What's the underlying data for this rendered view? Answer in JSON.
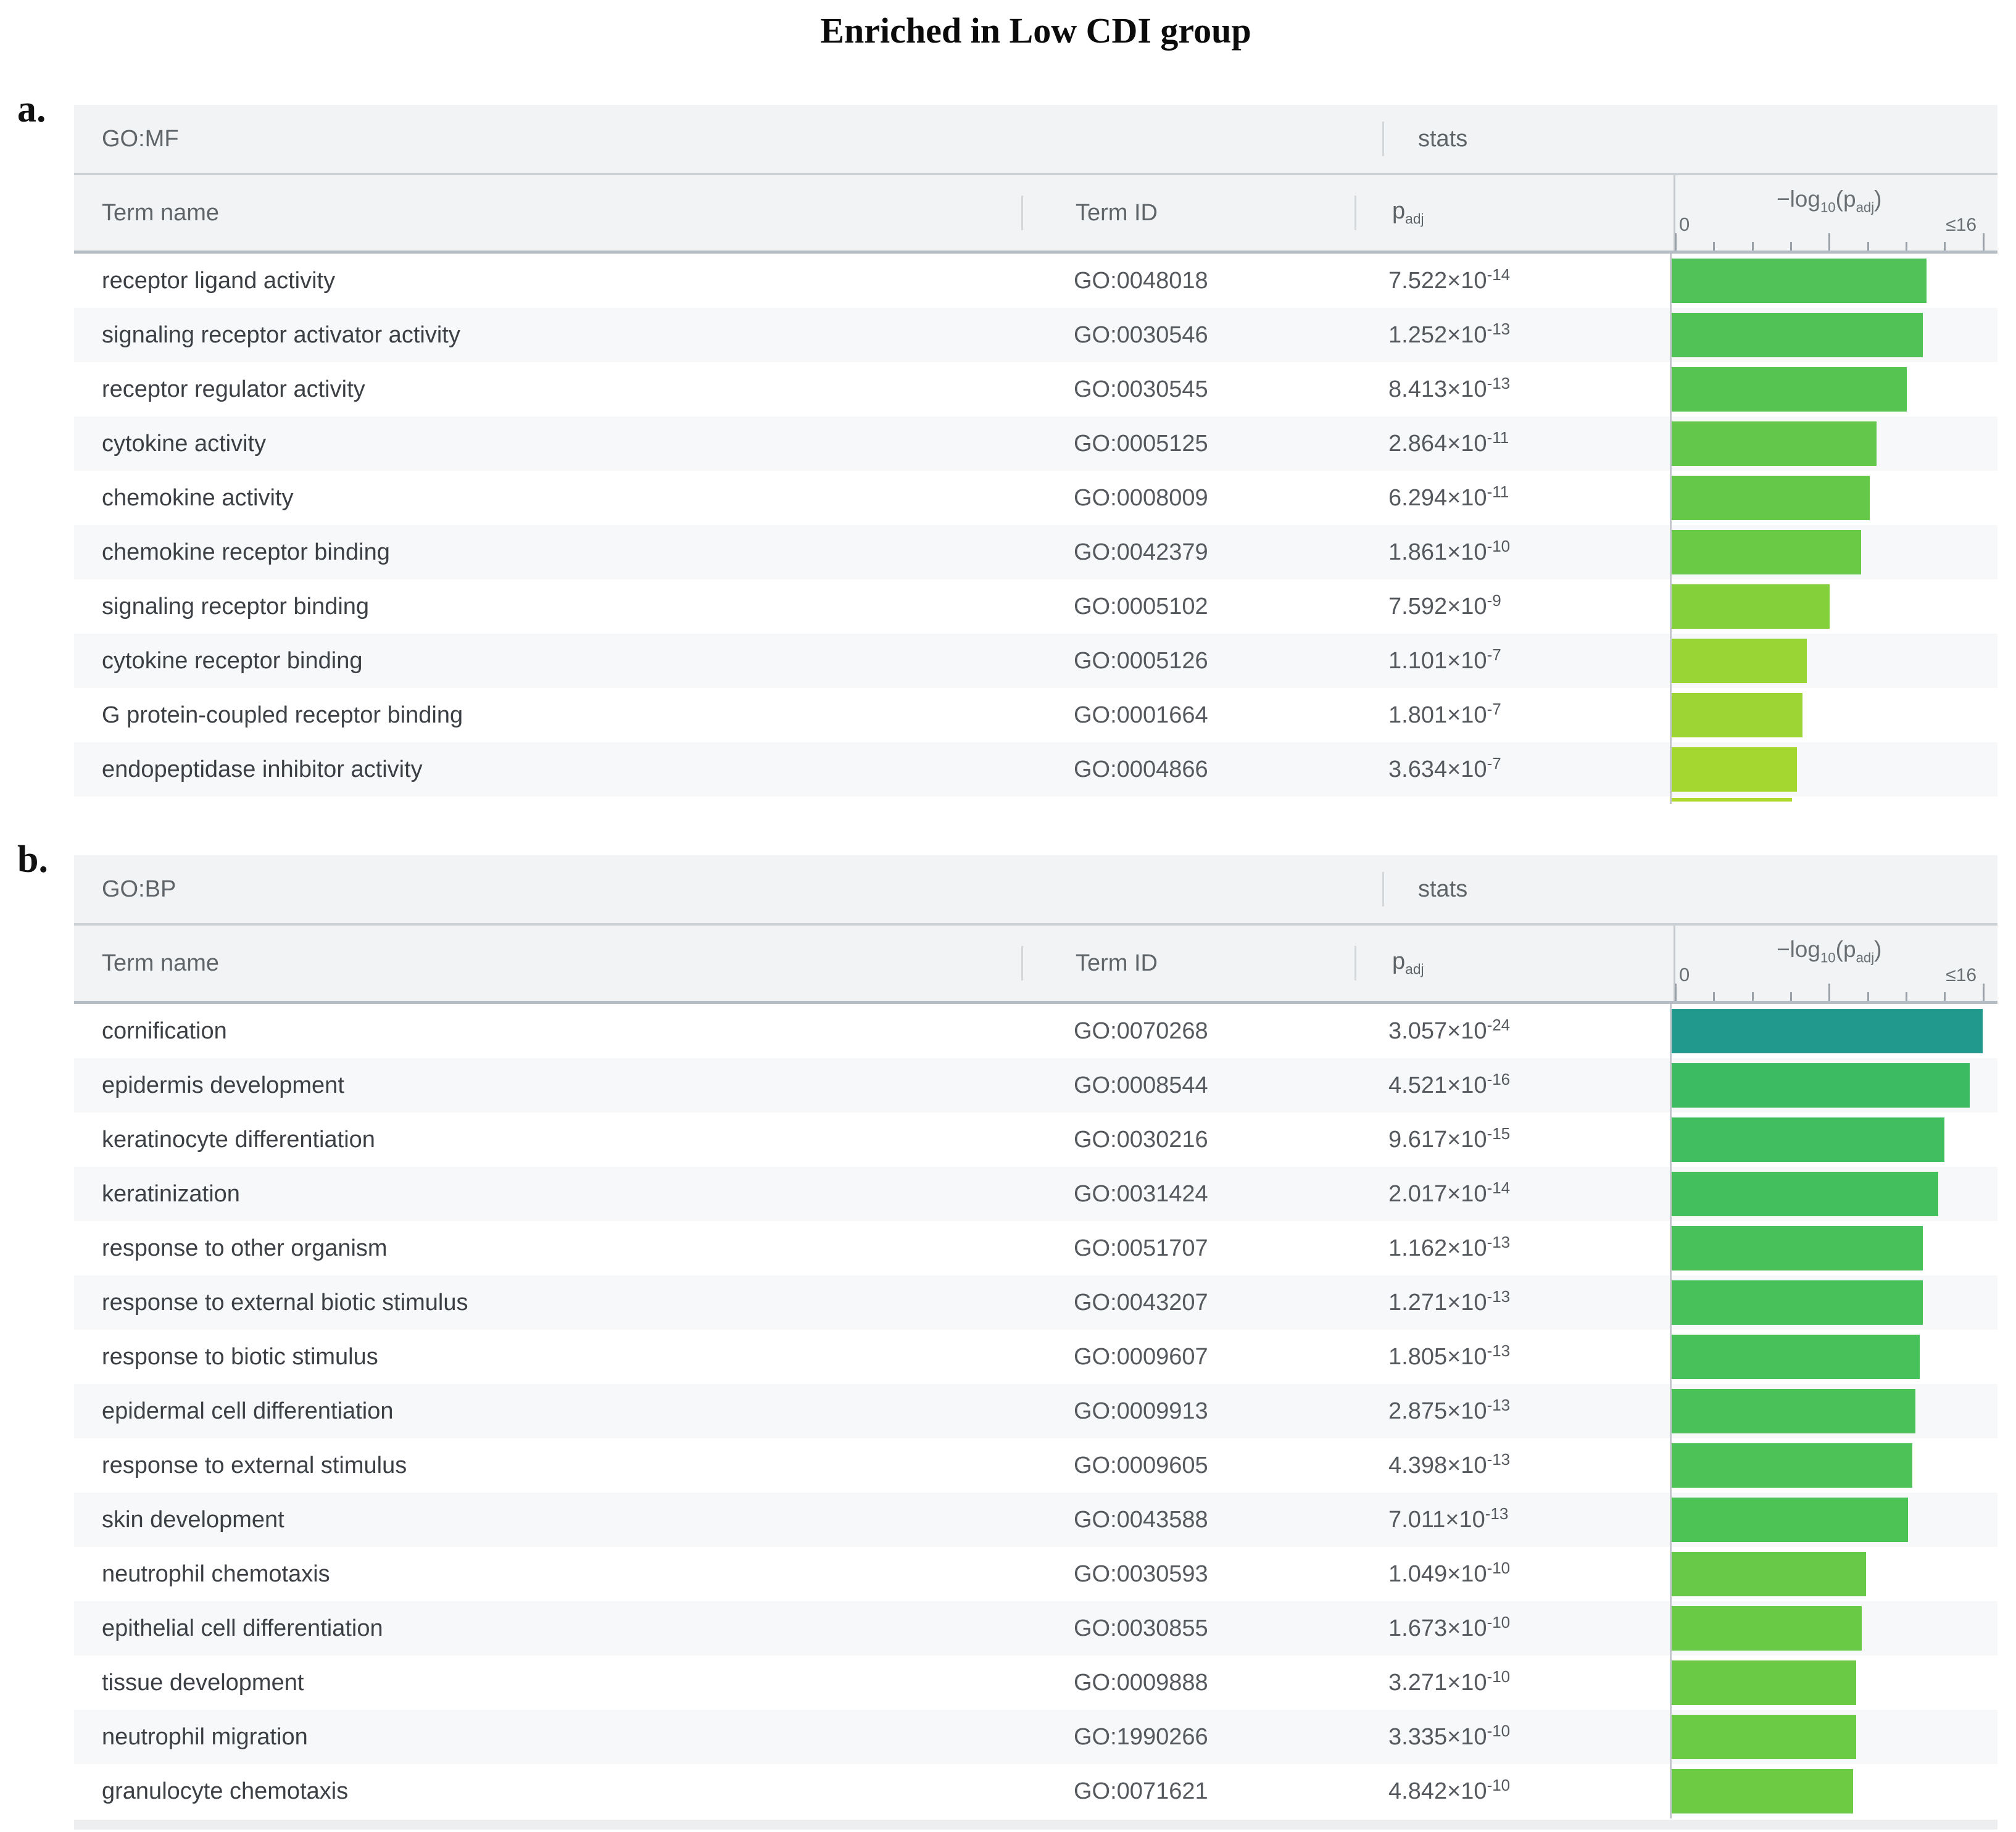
{
  "page_title": "Enriched in Low CDI group",
  "panels": [
    {
      "label": "a.",
      "band": {
        "source": "GO:MF",
        "stats": "stats"
      },
      "columns": {
        "term_name": "Term name",
        "term_id": "Term ID",
        "padj_base": "p",
        "padj_sub": "adj"
      },
      "axis": {
        "t1": "−log",
        "t_sub10": "10",
        "t2": "(p",
        "t_subadj": "adj",
        "t3": ")",
        "min": "0",
        "max": "≤16"
      },
      "rows": [
        {
          "term": "receptor ligand activity",
          "id": "GO:0048018",
          "p_base": "7.522×10",
          "p_exp": "-14",
          "v": 13.12,
          "color": "#50c257"
        },
        {
          "term": "signaling receptor activator activity",
          "id": "GO:0030546",
          "p_base": "1.252×10",
          "p_exp": "-13",
          "v": 12.9,
          "color": "#51c256"
        },
        {
          "term": "receptor regulator activity",
          "id": "GO:0030545",
          "p_base": "8.413×10",
          "p_exp": "-13",
          "v": 12.08,
          "color": "#56c451"
        },
        {
          "term": "cytokine activity",
          "id": "GO:0005125",
          "p_base": "2.864×10",
          "p_exp": "-11",
          "v": 10.54,
          "color": "#62c74a"
        },
        {
          "term": "chemokine activity",
          "id": "GO:0008009",
          "p_base": "6.294×10",
          "p_exp": "-11",
          "v": 10.2,
          "color": "#65c848"
        },
        {
          "term": "chemokine receptor binding",
          "id": "GO:0042379",
          "p_base": "1.861×10",
          "p_exp": "-10",
          "v": 9.73,
          "color": "#6bca45"
        },
        {
          "term": "signaling receptor binding",
          "id": "GO:0005102",
          "p_base": "7.592×10",
          "p_exp": "-9",
          "v": 8.12,
          "color": "#84d03b"
        },
        {
          "term": "cytokine receptor binding",
          "id": "GO:0005126",
          "p_base": "1.101×10",
          "p_exp": "-7",
          "v": 6.96,
          "color": "#98d535"
        },
        {
          "term": "G protein-coupled receptor binding",
          "id": "GO:0001664",
          "p_base": "1.801×10",
          "p_exp": "-7",
          "v": 6.74,
          "color": "#9dd634"
        },
        {
          "term": "endopeptidase inhibitor activity",
          "id": "GO:0004866",
          "p_base": "3.634×10",
          "p_exp": "-7",
          "v": 6.44,
          "color": "#a4d730"
        }
      ],
      "cropped_next_bar": {
        "v": 6.2,
        "color": "#aed92c"
      }
    },
    {
      "label": "b.",
      "band": {
        "source": "GO:BP",
        "stats": "stats"
      },
      "columns": {
        "term_name": "Term name",
        "term_id": "Term ID",
        "padj_base": "p",
        "padj_sub": "adj"
      },
      "axis": {
        "t1": "−log",
        "t_sub10": "10",
        "t2": "(p",
        "t_subadj": "adj",
        "t3": ")",
        "min": "0",
        "max": "≤16"
      },
      "rows": [
        {
          "term": "cornification",
          "id": "GO:0070268",
          "p_base": "3.057×10",
          "p_exp": "-24",
          "v": 23.51,
          "color": "#21998d"
        },
        {
          "term": "epidermis development",
          "id": "GO:0008544",
          "p_base": "4.521×10",
          "p_exp": "-16",
          "v": 15.34,
          "color": "#3cbb63"
        },
        {
          "term": "keratinocyte differentiation",
          "id": "GO:0030216",
          "p_base": "9.617×10",
          "p_exp": "-15",
          "v": 14.02,
          "color": "#41be5f"
        },
        {
          "term": "keratinization",
          "id": "GO:0031424",
          "p_base": "2.017×10",
          "p_exp": "-14",
          "v": 13.7,
          "color": "#43bf5d"
        },
        {
          "term": "response to other organism",
          "id": "GO:0051707",
          "p_base": "1.162×10",
          "p_exp": "-13",
          "v": 12.93,
          "color": "#48c15b"
        },
        {
          "term": "response to external biotic stimulus",
          "id": "GO:0043207",
          "p_base": "1.271×10",
          "p_exp": "-13",
          "v": 12.9,
          "color": "#48c15b"
        },
        {
          "term": "response to biotic stimulus",
          "id": "GO:0009607",
          "p_base": "1.805×10",
          "p_exp": "-13",
          "v": 12.74,
          "color": "#49c15a"
        },
        {
          "term": "epidermal cell differentiation",
          "id": "GO:0009913",
          "p_base": "2.875×10",
          "p_exp": "-13",
          "v": 12.54,
          "color": "#4ac259"
        },
        {
          "term": "response to external stimulus",
          "id": "GO:0009605",
          "p_base": "4.398×10",
          "p_exp": "-13",
          "v": 12.36,
          "color": "#4cc257"
        },
        {
          "term": "skin development",
          "id": "GO:0043588",
          "p_base": "7.011×10",
          "p_exp": "-13",
          "v": 12.15,
          "color": "#4ec355"
        },
        {
          "term": "neutrophil chemotaxis",
          "id": "GO:0030593",
          "p_base": "1.049×10",
          "p_exp": "-10",
          "v": 9.98,
          "color": "#67c947"
        },
        {
          "term": "epithelial cell differentiation",
          "id": "GO:0030855",
          "p_base": "1.673×10",
          "p_exp": "-10",
          "v": 9.78,
          "color": "#69ca46"
        },
        {
          "term": "tissue development",
          "id": "GO:0009888",
          "p_base": "3.271×10",
          "p_exp": "-10",
          "v": 9.49,
          "color": "#6bca45"
        },
        {
          "term": "neutrophil migration",
          "id": "GO:1990266",
          "p_base": "3.335×10",
          "p_exp": "-10",
          "v": 9.48,
          "color": "#6ccb44"
        },
        {
          "term": "granulocyte chemotaxis",
          "id": "GO:0071621",
          "p_base": "4.842×10",
          "p_exp": "-10",
          "v": 9.32,
          "color": "#6dcb43"
        }
      ],
      "bottom_strip": true
    }
  ],
  "chart_data": [
    {
      "type": "bar",
      "title": "GO:MF (Enriched in Low CDI group)",
      "orientation": "horizontal",
      "xlabel": "-log10(p_adj)",
      "xlim": [
        0,
        16
      ],
      "values_capped_at": 16,
      "legend": "none",
      "grid": false,
      "categories": [
        "receptor ligand activity",
        "signaling receptor activator activity",
        "receptor regulator activity",
        "cytokine activity",
        "chemokine activity",
        "chemokine receptor binding",
        "signaling receptor binding",
        "cytokine receptor binding",
        "G protein-coupled receptor binding",
        "endopeptidase inhibitor activity"
      ],
      "term_ids": [
        "GO:0048018",
        "GO:0030546",
        "GO:0030545",
        "GO:0005125",
        "GO:0008009",
        "GO:0042379",
        "GO:0005102",
        "GO:0005126",
        "GO:0001664",
        "GO:0004866"
      ],
      "p_adj": [
        "7.522e-14",
        "1.252e-13",
        "8.413e-13",
        "2.864e-11",
        "6.294e-11",
        "1.861e-10",
        "7.592e-9",
        "1.101e-7",
        "1.801e-7",
        "3.634e-7"
      ],
      "values": [
        13.12,
        12.9,
        12.08,
        10.54,
        10.2,
        9.73,
        8.12,
        6.96,
        6.74,
        6.44
      ]
    },
    {
      "type": "bar",
      "title": "GO:BP (Enriched in Low CDI group)",
      "orientation": "horizontal",
      "xlabel": "-log10(p_adj)",
      "xlim": [
        0,
        16
      ],
      "values_capped_at": 16,
      "legend": "none",
      "grid": false,
      "categories": [
        "cornification",
        "epidermis development",
        "keratinocyte differentiation",
        "keratinization",
        "response to other organism",
        "response to external biotic stimulus",
        "response to biotic stimulus",
        "epidermal cell differentiation",
        "response to external stimulus",
        "skin development",
        "neutrophil chemotaxis",
        "epithelial cell differentiation",
        "tissue development",
        "neutrophil migration",
        "granulocyte chemotaxis"
      ],
      "term_ids": [
        "GO:0070268",
        "GO:0008544",
        "GO:0030216",
        "GO:0031424",
        "GO:0051707",
        "GO:0043207",
        "GO:0009607",
        "GO:0009913",
        "GO:0009605",
        "GO:0043588",
        "GO:0030593",
        "GO:0030855",
        "GO:0009888",
        "GO:1990266",
        "GO:0071621"
      ],
      "p_adj": [
        "3.057e-24",
        "4.521e-16",
        "9.617e-15",
        "2.017e-14",
        "1.162e-13",
        "1.271e-13",
        "1.805e-13",
        "2.875e-13",
        "4.398e-13",
        "7.011e-13",
        "1.049e-10",
        "1.673e-10",
        "3.271e-10",
        "3.335e-10",
        "4.842e-10"
      ],
      "values": [
        23.51,
        15.34,
        14.02,
        13.7,
        12.93,
        12.9,
        12.74,
        12.54,
        12.36,
        12.15,
        9.98,
        9.78,
        9.49,
        9.48,
        9.32
      ]
    }
  ]
}
